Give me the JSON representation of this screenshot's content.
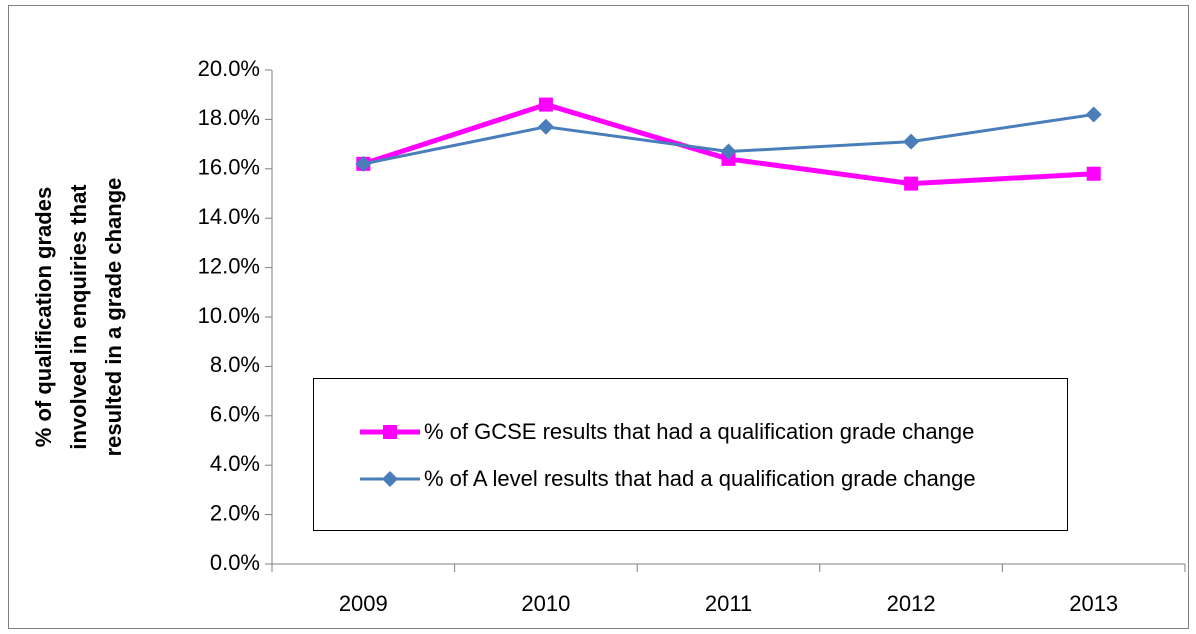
{
  "chart_data": {
    "type": "line",
    "ylabel": [
      "% of  qualification grades",
      "involved in enquiries that",
      "resulted in a grade change"
    ],
    "categories": [
      "2009",
      "2010",
      "2011",
      "2012",
      "2013"
    ],
    "series": [
      {
        "name": "% of GCSE results that had a qualification grade change",
        "color": "#ff00ff",
        "marker": "square",
        "values": [
          16.2,
          18.6,
          16.4,
          15.4,
          15.8
        ]
      },
      {
        "name": "% of A level results that had a qualification grade change",
        "color": "#4a7ebb",
        "marker": "diamond",
        "values": [
          16.2,
          17.7,
          16.7,
          17.1,
          18.2
        ]
      }
    ],
    "ylim": [
      0,
      20
    ],
    "yticks": [
      {
        "value": 0,
        "label": "0.0%"
      },
      {
        "value": 2,
        "label": "2.0%"
      },
      {
        "value": 4,
        "label": "4.0%"
      },
      {
        "value": 6,
        "label": "6.0%"
      },
      {
        "value": 8,
        "label": "8.0%"
      },
      {
        "value": 10,
        "label": "10.0%"
      },
      {
        "value": 12,
        "label": "12.0%"
      },
      {
        "value": 14,
        "label": "14.0%"
      },
      {
        "value": 16,
        "label": "16.0%"
      },
      {
        "value": 18,
        "label": "18.0%"
      },
      {
        "value": 20,
        "label": "20.0%"
      }
    ]
  }
}
